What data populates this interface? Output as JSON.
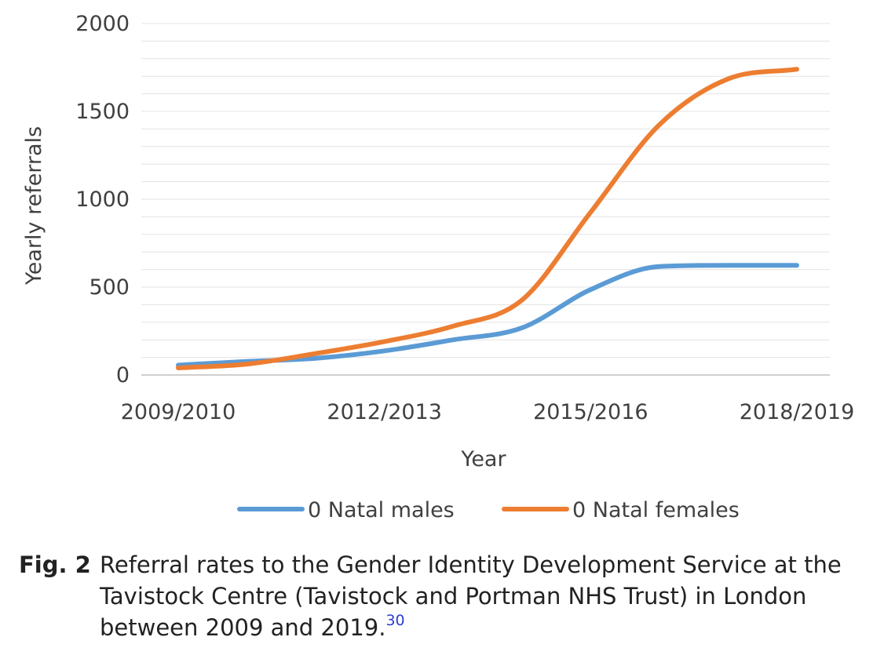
{
  "chart_data": {
    "type": "line",
    "x": [
      "2009/2010",
      "2010/2011",
      "2011/2012",
      "2012/2013",
      "2013/2014",
      "2014/2015",
      "2015/2016",
      "2016/2017",
      "2017/2018",
      "2018/2019"
    ],
    "x_tick_labels": [
      "2009/2010",
      "2012/2013",
      "2015/2016",
      "2018/2019"
    ],
    "series": [
      {
        "name": "0 Natal males",
        "color": "#5b9bd5",
        "values": [
          56,
          77,
          95,
          137,
          200,
          268,
          486,
          617,
          624,
          624
        ]
      },
      {
        "name": "0 Natal females",
        "color": "#ed7d31",
        "values": [
          40,
          62,
          122,
          190,
          278,
          426,
          926,
          1424,
          1685,
          1740
        ]
      }
    ],
    "xlabel": "Year",
    "ylabel": "Yearly referrals",
    "ylim": [
      0,
      2000
    ],
    "y_ticks": [
      0,
      500,
      1000,
      1500,
      2000
    ],
    "grid": true,
    "legend_position": "bottom"
  },
  "caption": {
    "label": "Fig. 2",
    "text": "Referral rates to the Gender Identity Development Service at the Tavistock Centre (Tavistock and Portman NHS Trust) in London between 2009 and 2019.",
    "ref": "30"
  }
}
